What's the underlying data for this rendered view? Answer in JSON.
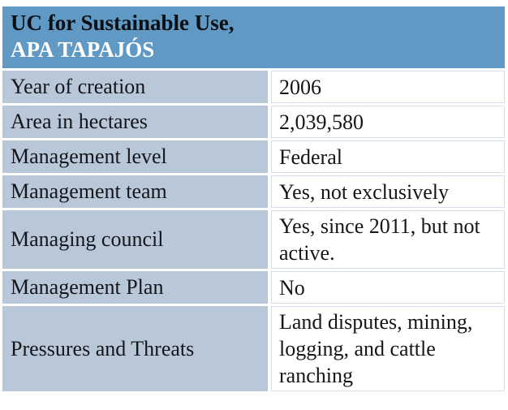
{
  "header": {
    "title_line1": "UC for Sustainable Use,",
    "title_line2": "APA TAPAJÓS"
  },
  "table": {
    "rows": [
      {
        "label": "Year of creation",
        "value": "2006"
      },
      {
        "label": "Area in hectares",
        "value": "2,039,580"
      },
      {
        "label": "Management level",
        "value": "Federal"
      },
      {
        "label": "Management team",
        "value": "Yes, not exclusively"
      },
      {
        "label": "Managing council",
        "value": "Yes, since 2011, but not active."
      },
      {
        "label": "Management Plan",
        "value": "No"
      },
      {
        "label": "Pressures and Threats",
        "value": "Land disputes, mining, logging, and cattle ranching"
      }
    ]
  },
  "colors": {
    "header_bg": "#6099c3",
    "header_text_primary": "#0b0f14",
    "header_text_secondary": "#ffffff",
    "label_cell_bg": "#b9c8d8",
    "value_cell_bg": "#fffffe",
    "value_cell_border": "#d5dfe9",
    "body_text": "#13161a",
    "page_bg": "#ffffff"
  }
}
